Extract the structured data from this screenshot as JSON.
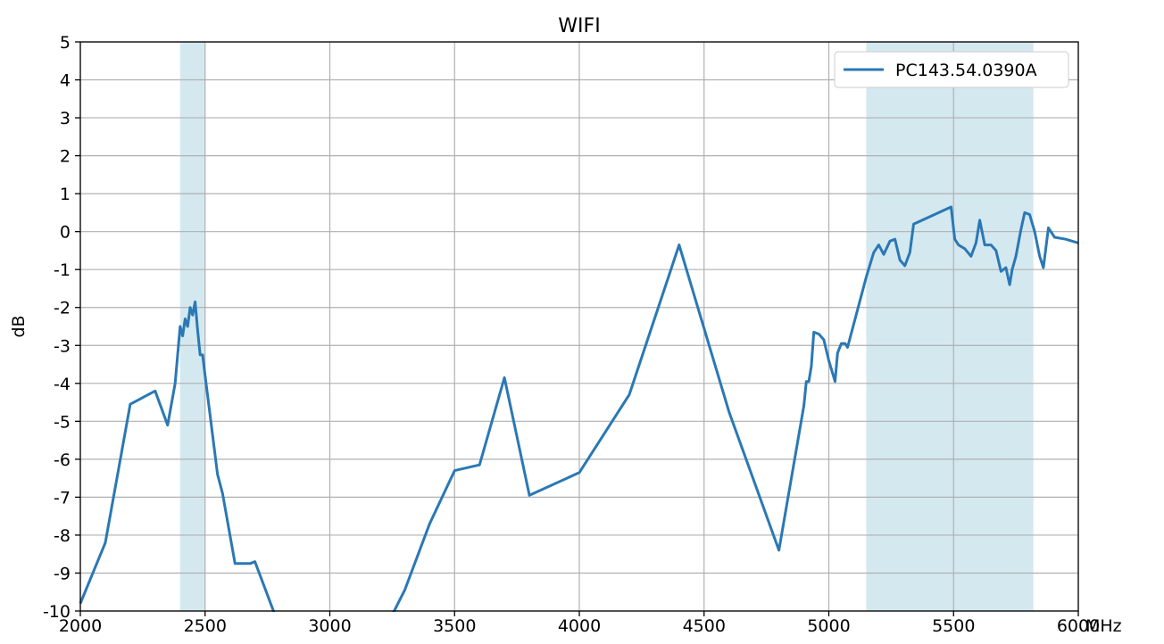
{
  "chart_data": {
    "type": "line",
    "title": "WIFI",
    "xlabel": "MHz",
    "ylabel": "dB",
    "xlim": [
      2000,
      6000
    ],
    "ylim": [
      -10,
      5
    ],
    "x_ticks": [
      2000,
      2500,
      3000,
      3500,
      4000,
      4500,
      5000,
      5500,
      6000
    ],
    "x_tick_labels": [
      "2000",
      "2500",
      "3000",
      "3500",
      "4000",
      "4500",
      "5000",
      "5500",
      "6000"
    ],
    "y_ticks": [
      5,
      4,
      3,
      2,
      1,
      0,
      -1,
      -2,
      -3,
      -4,
      -5,
      -6,
      -7,
      -8,
      -9,
      -10
    ],
    "y_tick_labels": [
      "5",
      "4",
      "3",
      "2",
      "1",
      "0",
      "-1",
      "-2",
      "-3",
      "-4",
      "-5",
      "-6",
      "-7",
      "-8",
      "-9",
      "-10"
    ],
    "grid": true,
    "legend_position": "top-right",
    "shaded_bands": [
      {
        "x_start": 2400,
        "x_end": 2500,
        "color": "#d4e8f0"
      },
      {
        "x_start": 5150,
        "x_end": 5820,
        "color": "#d4e8f0"
      }
    ],
    "series": [
      {
        "name": "PC143.54.0390A",
        "color": "#2a78b4",
        "points": [
          [
            2000,
            -9.8
          ],
          [
            2100,
            -8.2
          ],
          [
            2200,
            -4.55
          ],
          [
            2300,
            -4.2
          ],
          [
            2350,
            -5.1
          ],
          [
            2380,
            -4.0
          ],
          [
            2400,
            -2.5
          ],
          [
            2410,
            -2.75
          ],
          [
            2420,
            -2.3
          ],
          [
            2430,
            -2.5
          ],
          [
            2440,
            -2.0
          ],
          [
            2450,
            -2.2
          ],
          [
            2460,
            -1.85
          ],
          [
            2470,
            -2.6
          ],
          [
            2480,
            -3.25
          ],
          [
            2490,
            -3.25
          ],
          [
            2500,
            -3.8
          ],
          [
            2550,
            -6.4
          ],
          [
            2570,
            -6.9
          ],
          [
            2620,
            -8.75
          ],
          [
            2680,
            -8.75
          ],
          [
            2700,
            -8.7
          ],
          [
            2780,
            -10.1
          ],
          [
            3250,
            -10.1
          ],
          [
            3300,
            -9.45
          ],
          [
            3400,
            -7.7
          ],
          [
            3500,
            -6.3
          ],
          [
            3600,
            -6.15
          ],
          [
            3700,
            -3.85
          ],
          [
            3800,
            -6.95
          ],
          [
            4000,
            -6.35
          ],
          [
            4200,
            -4.3
          ],
          [
            4400,
            -0.35
          ],
          [
            4600,
            -4.75
          ],
          [
            4800,
            -8.4
          ],
          [
            4900,
            -4.6
          ],
          [
            4910,
            -3.95
          ],
          [
            4920,
            -3.95
          ],
          [
            4930,
            -3.55
          ],
          [
            4940,
            -2.65
          ],
          [
            4960,
            -2.7
          ],
          [
            4980,
            -2.85
          ],
          [
            5000,
            -3.4
          ],
          [
            5025,
            -3.95
          ],
          [
            5035,
            -3.2
          ],
          [
            5050,
            -2.95
          ],
          [
            5065,
            -2.95
          ],
          [
            5075,
            -3.05
          ],
          [
            5150,
            -1.2
          ],
          [
            5180,
            -0.55
          ],
          [
            5200,
            -0.35
          ],
          [
            5220,
            -0.6
          ],
          [
            5245,
            -0.25
          ],
          [
            5265,
            -0.2
          ],
          [
            5285,
            -0.75
          ],
          [
            5305,
            -0.9
          ],
          [
            5325,
            -0.55
          ],
          [
            5340,
            0.2
          ],
          [
            5490,
            0.65
          ],
          [
            5505,
            -0.2
          ],
          [
            5520,
            -0.35
          ],
          [
            5545,
            -0.45
          ],
          [
            5570,
            -0.65
          ],
          [
            5590,
            -0.3
          ],
          [
            5605,
            0.3
          ],
          [
            5625,
            -0.35
          ],
          [
            5650,
            -0.35
          ],
          [
            5670,
            -0.5
          ],
          [
            5690,
            -1.05
          ],
          [
            5710,
            -0.95
          ],
          [
            5725,
            -1.4
          ],
          [
            5735,
            -1.0
          ],
          [
            5750,
            -0.65
          ],
          [
            5770,
            0.05
          ],
          [
            5785,
            0.5
          ],
          [
            5805,
            0.45
          ],
          [
            5825,
            0.0
          ],
          [
            5845,
            -0.65
          ],
          [
            5860,
            -0.95
          ],
          [
            5880,
            0.1
          ],
          [
            5905,
            -0.15
          ],
          [
            5950,
            -0.2
          ],
          [
            6000,
            -0.3
          ]
        ]
      }
    ]
  }
}
